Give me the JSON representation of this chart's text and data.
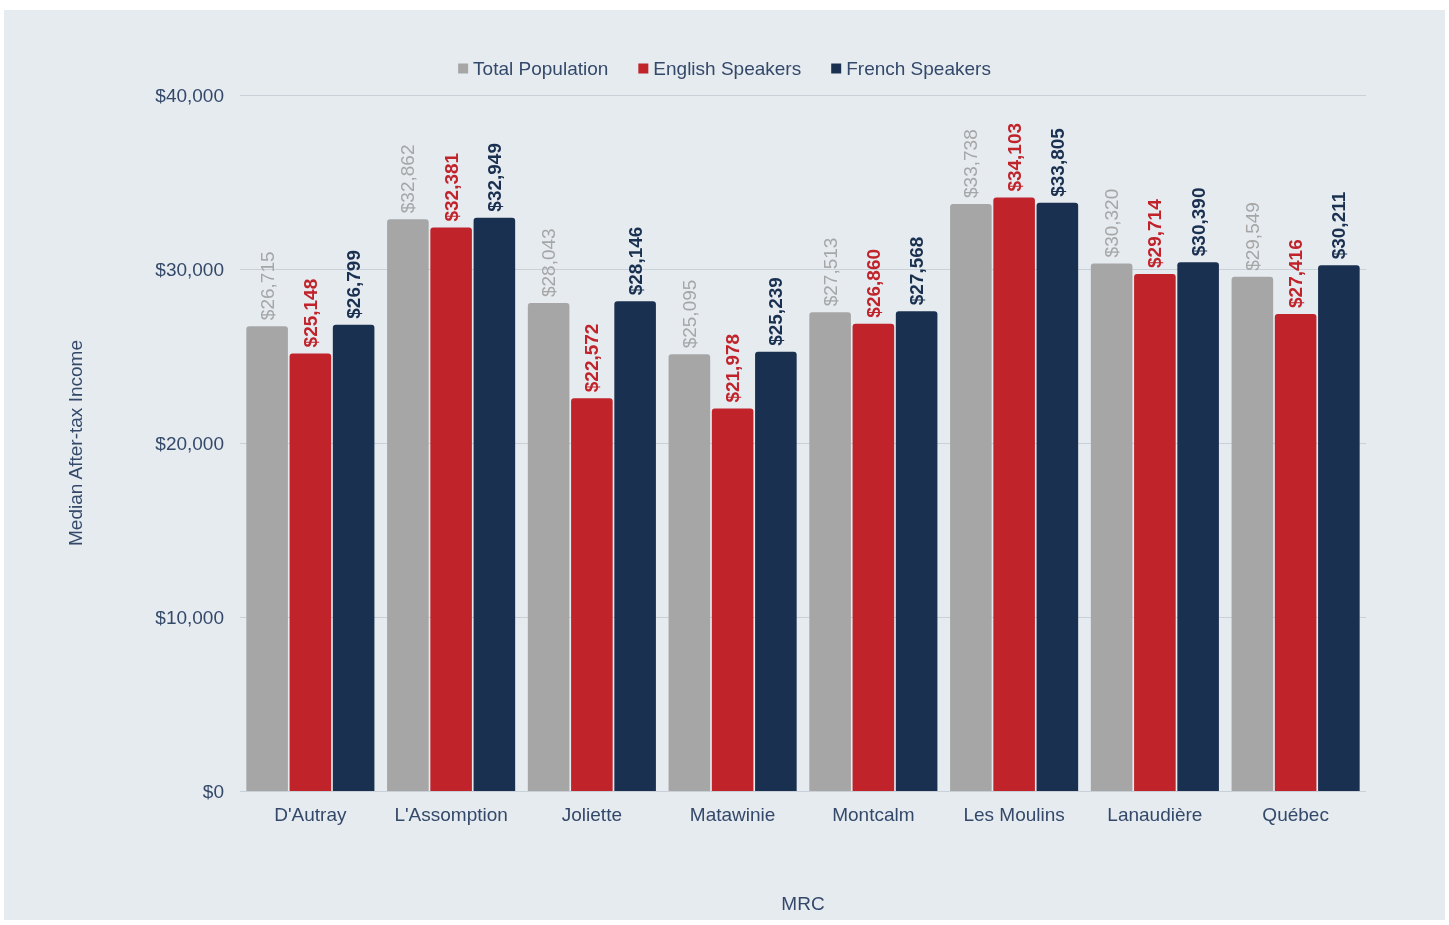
{
  "chart_data": {
    "type": "bar",
    "xlabel": "MRC",
    "ylabel": "Median After-tax Income",
    "categories": [
      "D'Autray",
      "L'Assomption",
      "Joliette",
      "Matawinie",
      "Montcalm",
      "Les Moulins",
      "Lanaudière",
      "Québec"
    ],
    "series": [
      {
        "name": "Total Population",
        "color": "#a6a6a6",
        "values": [
          26715,
          32862,
          28043,
          25095,
          27513,
          33738,
          30320,
          29549
        ],
        "value_labels": [
          "$26,715",
          "$32,862",
          "$28,043",
          "$25,095",
          "$27,513",
          "$33,738",
          "$30,320",
          "$29,549"
        ]
      },
      {
        "name": "English Speakers",
        "color": "#c0232a",
        "values": [
          25148,
          32381,
          22572,
          21978,
          26860,
          34103,
          29714,
          27416
        ],
        "value_labels": [
          "$25,148",
          "$32,381",
          "$22,572",
          "$21,978",
          "$26,860",
          "$34,103",
          "$29,714",
          "$27,416"
        ]
      },
      {
        "name": "French Speakers",
        "color": "#1a3050",
        "values": [
          26799,
          32949,
          28146,
          25239,
          27568,
          33805,
          30390,
          30211
        ],
        "value_labels": [
          "$26,799",
          "$32,949",
          "$28,146",
          "$25,239",
          "$27,568",
          "$33,805",
          "$30,390",
          "$30,211"
        ]
      }
    ],
    "ylim": [
      0,
      40000
    ],
    "yticks": [
      {
        "value": 0,
        "label": "$0"
      },
      {
        "value": 10000,
        "label": "$10,000"
      },
      {
        "value": 20000,
        "label": "$20,000"
      },
      {
        "value": 30000,
        "label": "$30,000"
      },
      {
        "value": 40000,
        "label": "$40,000"
      }
    ],
    "grid": "y",
    "legend": "top"
  }
}
